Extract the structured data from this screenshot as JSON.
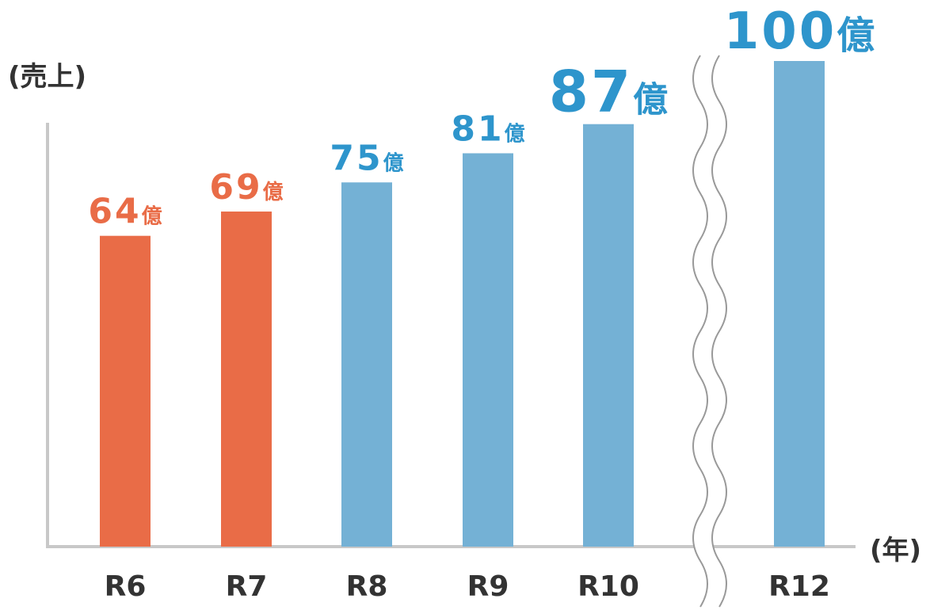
{
  "chart_data": {
    "type": "bar",
    "y_label": "(売上)",
    "x_label": "(年)",
    "categories": [
      "R6",
      "R7",
      "R8",
      "R9",
      "R10",
      "R12"
    ],
    "values": [
      64,
      69,
      75,
      81,
      87,
      100
    ],
    "value_labels": [
      "64億",
      "69億",
      "75億",
      "81億",
      "87億",
      "100億"
    ],
    "colors": [
      "#e96c47",
      "#e96c47",
      "#74b1d5",
      "#74b1d5",
      "#74b1d5",
      "#74b1d5"
    ],
    "label_colors": [
      "#e96c47",
      "#e96c47",
      "#2e95cc",
      "#2e95cc",
      "#2e95cc",
      "#2e95cc"
    ],
    "ylim": [
      0,
      100
    ]
  }
}
